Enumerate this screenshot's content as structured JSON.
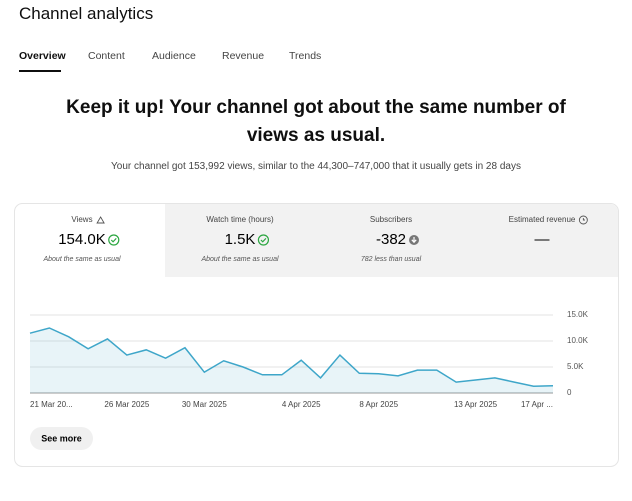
{
  "header": {
    "title": "Channel analytics"
  },
  "tabs": [
    "Overview",
    "Content",
    "Audience",
    "Revenue",
    "Trends"
  ],
  "active_tab": 0,
  "headline": "Keep it up! Your channel got about the same number of views as usual.",
  "summary": "Your channel got 153,992 views, similar to the 44,300–747,000 that it usually gets in 28 days",
  "metrics": [
    {
      "label": "Views",
      "value": "154.0K",
      "note": "About the same as usual"
    },
    {
      "label": "Watch time (hours)",
      "value": "1.5K",
      "note": "About the same as usual"
    },
    {
      "label": "Subscribers",
      "value": "-382",
      "note": "782 less than usual"
    },
    {
      "label": "Estimated revenue",
      "value": "—"
    }
  ],
  "chart_data": {
    "type": "line",
    "categories": [
      "21 Mar 20...",
      null,
      null,
      null,
      null,
      "26 Mar 2025",
      null,
      null,
      null,
      "30 Mar 2025",
      null,
      null,
      null,
      null,
      "4 Apr 2025",
      null,
      null,
      null,
      "8 Apr 2025",
      null,
      null,
      null,
      null,
      "13 Apr 2025",
      null,
      null,
      null,
      "17 Apr ..."
    ],
    "values": [
      11500,
      12500,
      10800,
      8500,
      10400,
      7300,
      8300,
      6700,
      8700,
      4000,
      6200,
      5000,
      3500,
      3500,
      6300,
      2900,
      7300,
      3800,
      3700,
      3300,
      4400,
      4400,
      2100,
      2500,
      2900,
      2100,
      1300,
      1400
    ],
    "color": "#3ea6c9",
    "ylim": [
      0,
      15000
    ],
    "yticks": [
      0,
      {
        "value": 5000,
        "label": "5.0K"
      },
      {
        "value": 10000,
        "label": "10.0K"
      },
      {
        "value": 15000,
        "label": "15.0K"
      }
    ],
    "grid": true
  },
  "see_more": "See more"
}
